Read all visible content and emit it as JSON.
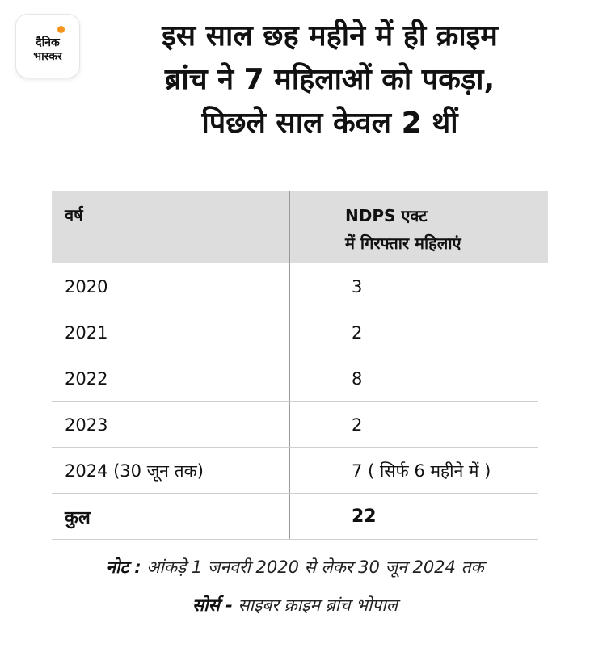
{
  "logo": {
    "line1": "दैनिक",
    "line2": "भास्कर",
    "accent_color": "#f7941d"
  },
  "title": {
    "line1": "इस साल छह महीने में ही क्राइम",
    "line2": "ब्रांच ने 7 महिलाओं को पकड़ा,",
    "line3": "पिछले साल केवल 2 थीं"
  },
  "table": {
    "header": {
      "col1": "वर्ष",
      "col2_line1": "NDPS एक्ट",
      "col2_line2": "में गिरफ्तार महिलाएं"
    },
    "rows": [
      {
        "year": "2020",
        "count": "3"
      },
      {
        "year": "2021",
        "count": "2"
      },
      {
        "year": "2022",
        "count": "8"
      },
      {
        "year": "2023",
        "count": "2"
      },
      {
        "year": "2024 (30 जून तक)",
        "count": "7 ( सिर्फ 6 महीने में )"
      }
    ],
    "total": {
      "label": "कुल",
      "value": "22"
    }
  },
  "note": {
    "label": "नोट :",
    "text": " आंकड़े 1 जनवरी 2020 से लेकर 30 जून 2024 तक"
  },
  "source": {
    "label": "सोर्स -",
    "text": " साइबर क्राइम ब्रांच भोपाल"
  }
}
